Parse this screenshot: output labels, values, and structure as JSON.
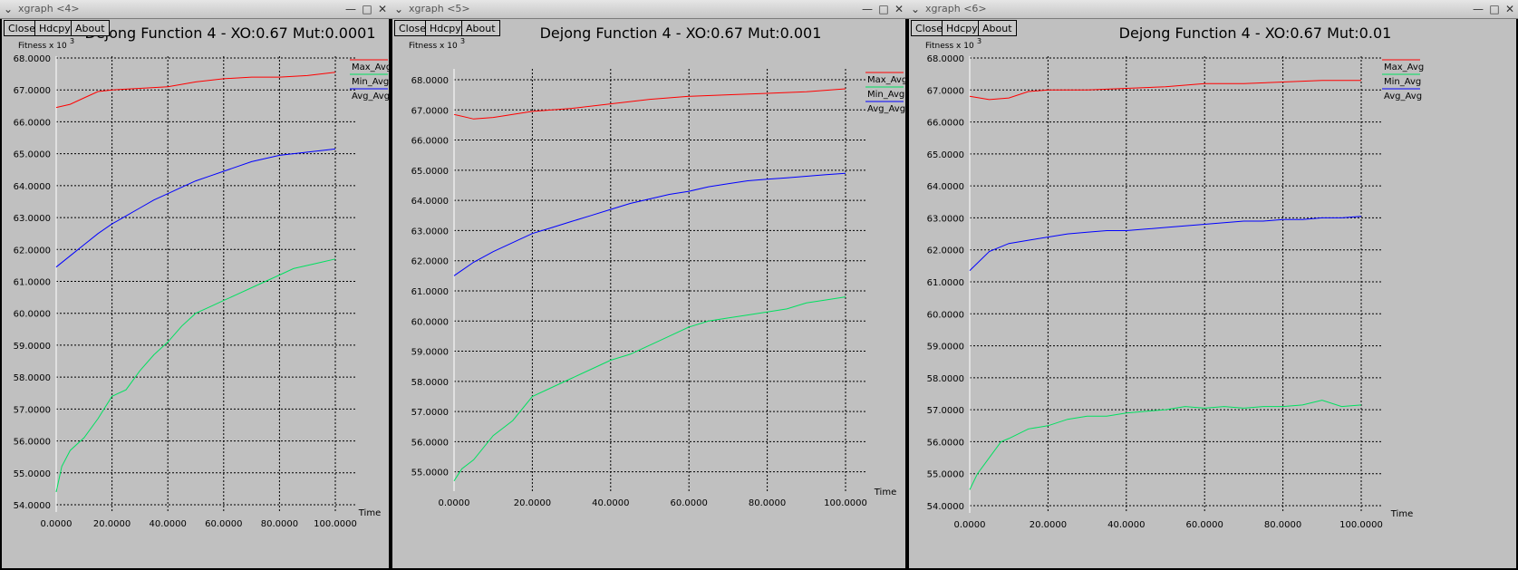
{
  "windows": [
    {
      "title": "xgraph <4>",
      "buttons": [
        "Close",
        "Hdcpy",
        "About"
      ],
      "chart_index": 0
    },
    {
      "title": "xgraph <5>",
      "buttons": [
        "Close",
        "Hdcpy",
        "About"
      ],
      "chart_index": 1
    },
    {
      "title": "xgraph <6>",
      "buttons": [
        "Close",
        "Hdcpy",
        "About"
      ],
      "chart_index": 2
    }
  ],
  "chart_data": [
    {
      "type": "line",
      "title": "Dejong Function 4 - XO:0.67 Mut:0.0001",
      "ylabel": "Fitness x 10",
      "ylabel_exponent": "3",
      "xlabel": "Time",
      "xlim": [
        0,
        100
      ],
      "ylim": [
        54,
        68
      ],
      "grid": true,
      "legend_position": "right",
      "x_ticks": [
        "0.0000",
        "20.0000",
        "40.0000",
        "60.0000",
        "80.0000",
        "100.0000"
      ],
      "y_ticks": [
        "54.0000",
        "55.0000",
        "56.0000",
        "57.0000",
        "58.0000",
        "59.0000",
        "60.0000",
        "61.0000",
        "62.0000",
        "63.0000",
        "64.0000",
        "65.0000",
        "66.0000",
        "67.0000",
        "68.0000"
      ],
      "series": [
        {
          "name": "Max_Avg",
          "color": "#ff0000",
          "x": [
            0,
            5,
            10,
            15,
            20,
            30,
            40,
            50,
            60,
            70,
            80,
            90,
            100
          ],
          "y": [
            66.45,
            66.55,
            66.75,
            66.95,
            67.0,
            67.05,
            67.1,
            67.25,
            67.35,
            67.4,
            67.4,
            67.45,
            67.55
          ]
        },
        {
          "name": "Min_Avg",
          "color": "#00e060",
          "x": [
            0,
            2,
            5,
            10,
            15,
            20,
            25,
            30,
            35,
            40,
            45,
            50,
            55,
            60,
            65,
            70,
            75,
            80,
            85,
            90,
            95,
            100
          ],
          "y": [
            54.4,
            55.2,
            55.7,
            56.1,
            56.7,
            57.4,
            57.6,
            58.2,
            58.7,
            59.1,
            59.6,
            60.0,
            60.2,
            60.4,
            60.6,
            60.8,
            61.0,
            61.2,
            61.4,
            61.5,
            61.6,
            61.7
          ]
        },
        {
          "name": "Avg_Avg",
          "color": "#0000ff",
          "x": [
            0,
            5,
            10,
            15,
            20,
            25,
            30,
            35,
            40,
            45,
            50,
            55,
            60,
            65,
            70,
            75,
            80,
            85,
            90,
            95,
            100
          ],
          "y": [
            61.45,
            61.8,
            62.15,
            62.5,
            62.8,
            63.05,
            63.3,
            63.55,
            63.75,
            63.95,
            64.15,
            64.3,
            64.45,
            64.6,
            64.75,
            64.85,
            64.95,
            65.0,
            65.05,
            65.1,
            65.15
          ]
        }
      ]
    },
    {
      "type": "line",
      "title": "Dejong Function 4 - XO:0.67 Mut:0.001",
      "ylabel": "Fitness x 10",
      "ylabel_exponent": "3",
      "xlabel": "Time",
      "xlim": [
        0,
        100
      ],
      "ylim": [
        54.6,
        68.3
      ],
      "grid": true,
      "legend_position": "right",
      "x_ticks": [
        "0.0000",
        "20.0000",
        "40.0000",
        "60.0000",
        "80.0000",
        "100.0000"
      ],
      "y_ticks": [
        "55.0000",
        "56.0000",
        "57.0000",
        "58.0000",
        "59.0000",
        "60.0000",
        "61.0000",
        "62.0000",
        "63.0000",
        "64.0000",
        "65.0000",
        "66.0000",
        "67.0000",
        "68.0000"
      ],
      "series": [
        {
          "name": "Max_Avg",
          "color": "#ff0000",
          "x": [
            0,
            5,
            10,
            15,
            20,
            30,
            40,
            50,
            60,
            70,
            80,
            90,
            100
          ],
          "y": [
            66.85,
            66.7,
            66.75,
            66.85,
            66.95,
            67.05,
            67.2,
            67.35,
            67.45,
            67.5,
            67.55,
            67.6,
            67.7
          ]
        },
        {
          "name": "Min_Avg",
          "color": "#00e060",
          "x": [
            0,
            2,
            5,
            10,
            15,
            20,
            25,
            30,
            35,
            40,
            45,
            50,
            55,
            60,
            65,
            70,
            75,
            80,
            85,
            90,
            95,
            100
          ],
          "y": [
            54.7,
            55.1,
            55.4,
            56.2,
            56.7,
            57.5,
            57.8,
            58.1,
            58.4,
            58.7,
            58.9,
            59.2,
            59.5,
            59.8,
            60.0,
            60.1,
            60.2,
            60.3,
            60.4,
            60.6,
            60.7,
            60.8
          ]
        },
        {
          "name": "Avg_Avg",
          "color": "#0000ff",
          "x": [
            0,
            5,
            10,
            15,
            20,
            25,
            30,
            35,
            40,
            45,
            50,
            55,
            60,
            65,
            70,
            75,
            80,
            85,
            90,
            95,
            100
          ],
          "y": [
            61.5,
            61.95,
            62.3,
            62.6,
            62.9,
            63.1,
            63.3,
            63.5,
            63.7,
            63.9,
            64.05,
            64.2,
            64.3,
            64.45,
            64.55,
            64.65,
            64.7,
            64.75,
            64.8,
            64.85,
            64.9
          ]
        }
      ]
    },
    {
      "type": "line",
      "title": "Dejong Function 4 - XO:0.67 Mut:0.01",
      "ylabel": "Fitness x 10",
      "ylabel_exponent": "3",
      "xlabel": "Time",
      "xlim": [
        0,
        100
      ],
      "ylim": [
        54,
        68
      ],
      "grid": true,
      "legend_position": "right",
      "x_ticks": [
        "0.0000",
        "20.0000",
        "40.0000",
        "60.0000",
        "80.0000",
        "100.0000"
      ],
      "y_ticks": [
        "54.0000",
        "55.0000",
        "56.0000",
        "57.0000",
        "58.0000",
        "59.0000",
        "60.0000",
        "61.0000",
        "62.0000",
        "63.0000",
        "64.0000",
        "65.0000",
        "66.0000",
        "67.0000",
        "68.0000"
      ],
      "series": [
        {
          "name": "Max_Avg",
          "color": "#ff0000",
          "x": [
            0,
            5,
            10,
            15,
            20,
            30,
            40,
            50,
            60,
            70,
            80,
            90,
            100
          ],
          "y": [
            66.8,
            66.7,
            66.75,
            66.95,
            67.0,
            67.0,
            67.05,
            67.1,
            67.2,
            67.2,
            67.25,
            67.3,
            67.3
          ]
        },
        {
          "name": "Min_Avg",
          "color": "#00e060",
          "x": [
            0,
            2,
            5,
            8,
            10,
            15,
            20,
            25,
            30,
            35,
            40,
            45,
            50,
            55,
            60,
            65,
            70,
            75,
            80,
            85,
            90,
            95,
            100
          ],
          "y": [
            54.5,
            55.0,
            55.5,
            56.0,
            56.1,
            56.4,
            56.5,
            56.7,
            56.8,
            56.8,
            56.9,
            56.95,
            57.0,
            57.1,
            57.05,
            57.1,
            57.05,
            57.1,
            57.1,
            57.15,
            57.3,
            57.1,
            57.15
          ]
        },
        {
          "name": "Avg_Avg",
          "color": "#0000ff",
          "x": [
            0,
            5,
            10,
            15,
            20,
            25,
            30,
            35,
            40,
            45,
            50,
            55,
            60,
            65,
            70,
            75,
            80,
            85,
            90,
            95,
            100
          ],
          "y": [
            61.35,
            61.95,
            62.2,
            62.3,
            62.4,
            62.5,
            62.55,
            62.6,
            62.6,
            62.65,
            62.7,
            62.75,
            62.8,
            62.85,
            62.9,
            62.9,
            62.95,
            62.95,
            63.0,
            63.0,
            63.05
          ]
        }
      ]
    }
  ]
}
